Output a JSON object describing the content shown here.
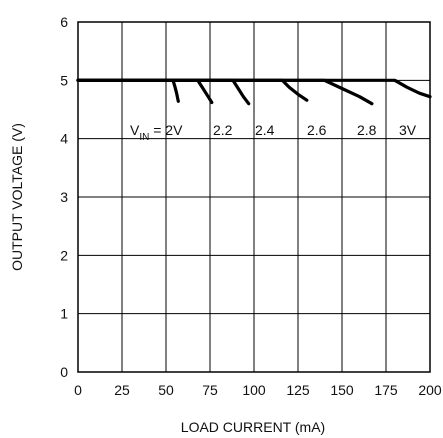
{
  "chart_data": {
    "type": "line",
    "xlabel": "LOAD CURRENT (mA)",
    "ylabel": "OUTPUT VOLTAGE (V)",
    "xlim": [
      0,
      200
    ],
    "ylim": [
      0,
      6
    ],
    "x_ticks": [
      "0",
      "25",
      "50",
      "75",
      "100",
      "125",
      "150",
      "175",
      "200"
    ],
    "y_ticks": [
      "0",
      "1",
      "2",
      "3",
      "4",
      "5",
      "6"
    ],
    "grid": true,
    "annotation": {
      "prefix": "V",
      "subscript": "IN",
      "suffix": " = 2V"
    },
    "series_labels": [
      "2.2",
      "2.4",
      "2.6",
      "2.8",
      "3V"
    ],
    "series": [
      {
        "name": "VIN = 2V",
        "x": [
          0,
          54,
          55,
          56,
          57
        ],
        "y": [
          5.0,
          5.0,
          4.9,
          4.78,
          4.64
        ]
      },
      {
        "name": "2.2",
        "x": [
          0,
          68,
          71,
          74,
          76
        ],
        "y": [
          5.0,
          5.0,
          4.86,
          4.72,
          4.62
        ]
      },
      {
        "name": "2.4",
        "x": [
          0,
          88,
          91,
          94,
          97
        ],
        "y": [
          5.0,
          5.0,
          4.86,
          4.72,
          4.6
        ]
      },
      {
        "name": "2.6",
        "x": [
          0,
          116,
          120,
          125,
          130
        ],
        "y": [
          5.0,
          5.0,
          4.88,
          4.76,
          4.66
        ]
      },
      {
        "name": "2.8",
        "x": [
          0,
          140,
          150,
          160,
          167
        ],
        "y": [
          5.0,
          5.0,
          4.86,
          4.72,
          4.6
        ]
      },
      {
        "name": "3V",
        "x": [
          0,
          180,
          187,
          194,
          200
        ],
        "y": [
          5.0,
          5.0,
          4.88,
          4.78,
          4.72
        ]
      }
    ]
  }
}
